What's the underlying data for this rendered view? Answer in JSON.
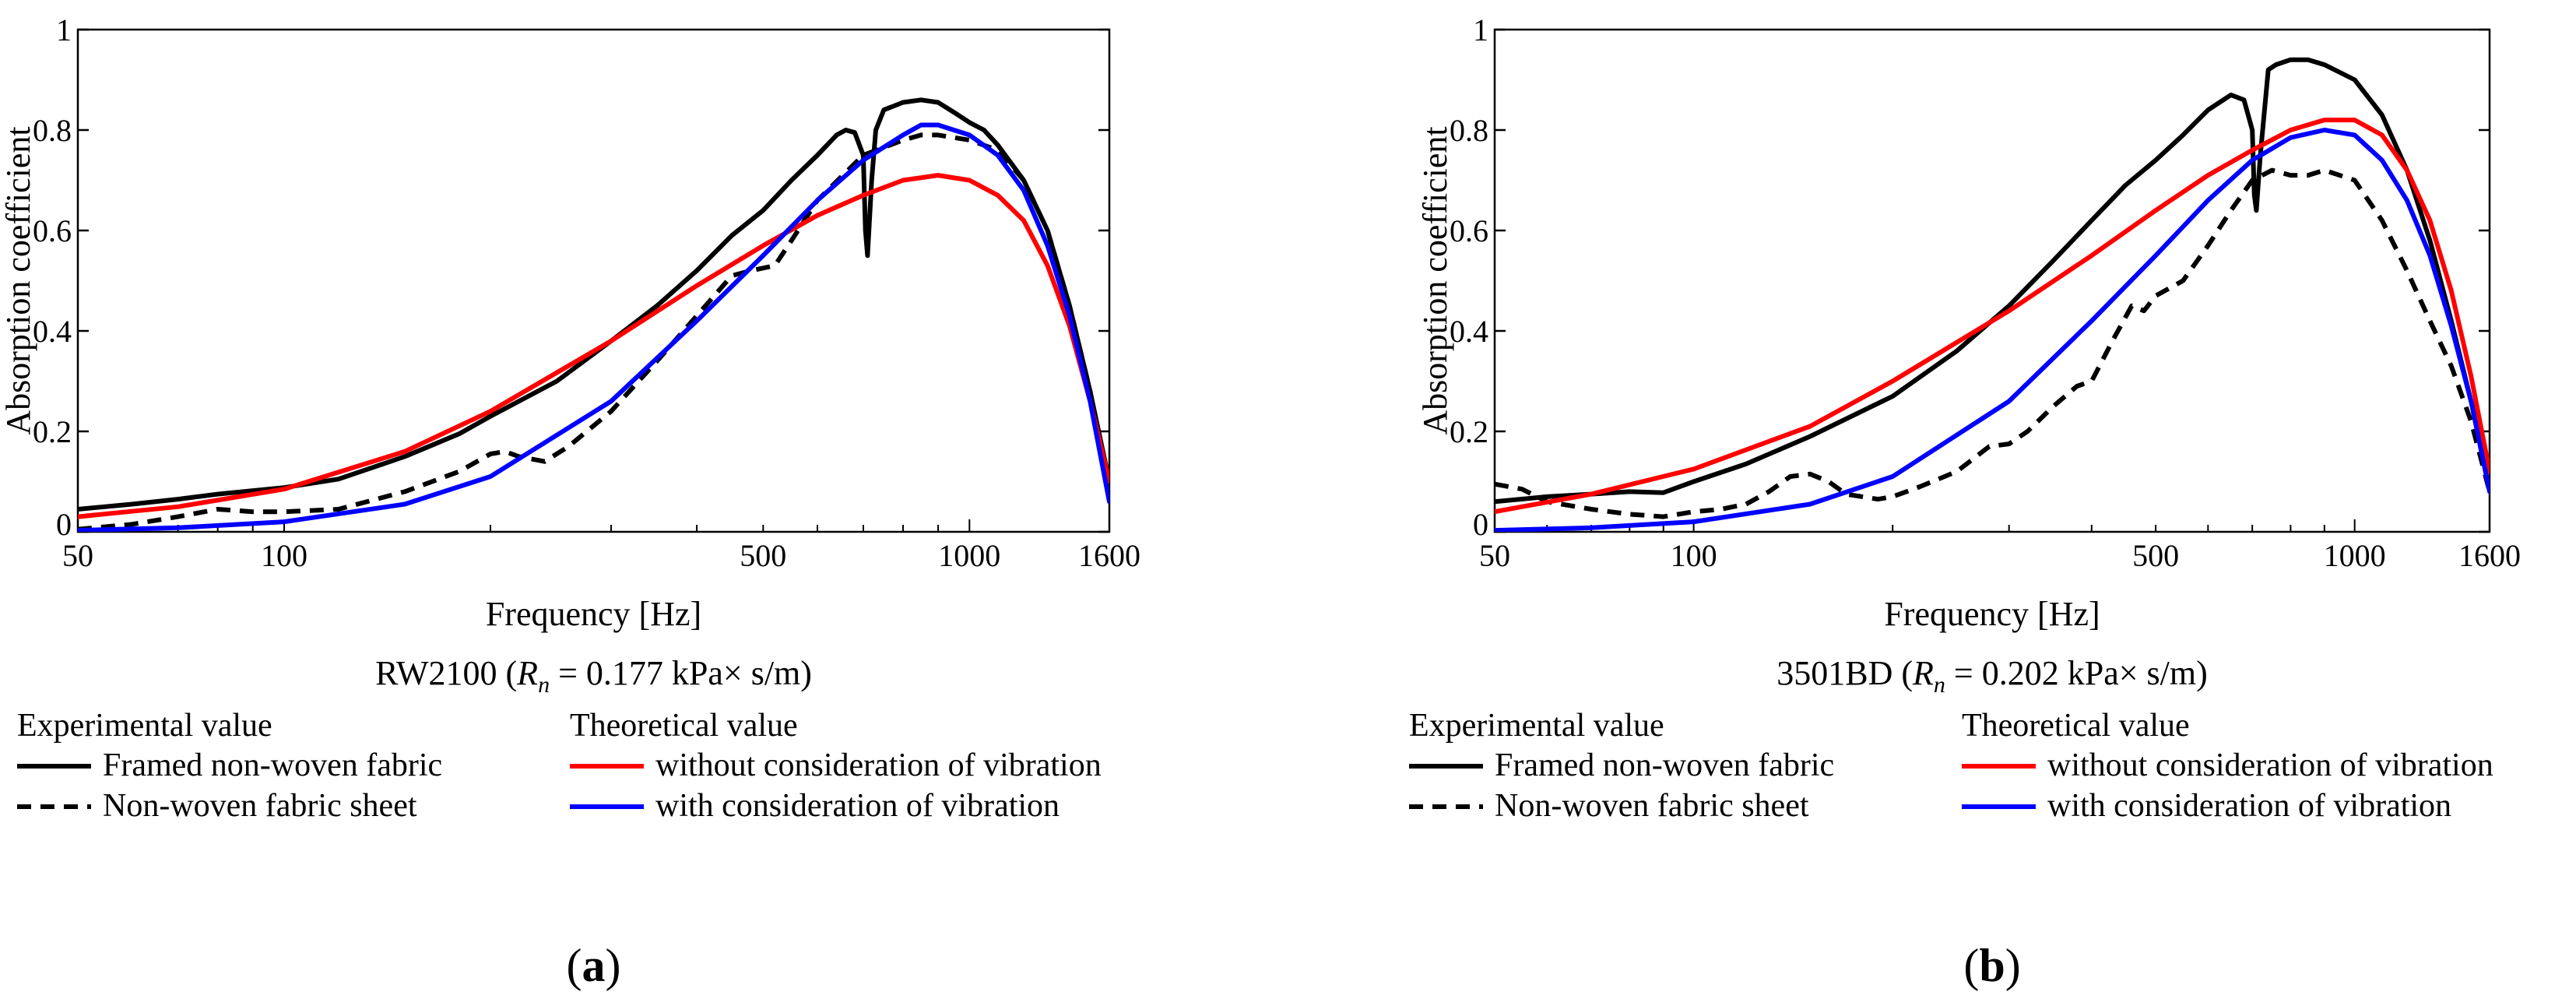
{
  "figure": {
    "panel_a_label": "a",
    "panel_b_label": "b"
  },
  "colors": {
    "experimental": "#000000",
    "without_vibration": "#ff0000",
    "with_vibration": "#0000ff",
    "axis": "#000000"
  },
  "chart_data": [
    {
      "type": "line",
      "panel": "a",
      "title": "",
      "caption": {
        "prefix": "RW2100 (",
        "symbol": "R",
        "subscript": "n",
        "suffix": " = 0.177 kPa× s/m)"
      },
      "xlabel": "Frequency [Hz]",
      "ylabel": "Absorption coefficient",
      "xscale": "log",
      "xlim": [
        50,
        1600
      ],
      "ylim": [
        0,
        1
      ],
      "x_ticks": [
        50,
        100,
        500,
        1000,
        1600
      ],
      "x_tick_labels": [
        "50",
        "100",
        "500",
        "1000",
        "1600"
      ],
      "y_ticks": [
        0,
        0.2,
        0.4,
        0.6,
        0.8,
        1
      ],
      "y_tick_labels": [
        "0",
        "0.2",
        "0.4",
        "0.6",
        "0.8",
        "1"
      ],
      "grid": false,
      "legend": {
        "experimental_heading": "Experimental value",
        "theoretical_heading": "Theoretical value",
        "placement": "below"
      },
      "series": [
        {
          "name": "Framed non-woven fabric",
          "group": "experimental",
          "style": "solid",
          "color": "#000000",
          "points": [
            [
              50,
              0.045
            ],
            [
              60,
              0.055
            ],
            [
              70,
              0.065
            ],
            [
              80,
              0.075
            ],
            [
              100,
              0.088
            ],
            [
              120,
              0.105
            ],
            [
              150,
              0.15
            ],
            [
              180,
              0.195
            ],
            [
              200,
              0.23
            ],
            [
              250,
              0.3
            ],
            [
              300,
              0.38
            ],
            [
              350,
              0.45
            ],
            [
              400,
              0.52
            ],
            [
              450,
              0.59
            ],
            [
              500,
              0.64
            ],
            [
              550,
              0.7
            ],
            [
              600,
              0.75
            ],
            [
              640,
              0.79
            ],
            [
              660,
              0.8
            ],
            [
              680,
              0.795
            ],
            [
              700,
              0.75
            ],
            [
              705,
              0.6
            ],
            [
              710,
              0.55
            ],
            [
              720,
              0.7
            ],
            [
              730,
              0.8
            ],
            [
              750,
              0.84
            ],
            [
              800,
              0.855
            ],
            [
              850,
              0.86
            ],
            [
              900,
              0.855
            ],
            [
              950,
              0.835
            ],
            [
              1000,
              0.815
            ],
            [
              1050,
              0.8
            ],
            [
              1100,
              0.77
            ],
            [
              1200,
              0.7
            ],
            [
              1300,
              0.6
            ],
            [
              1400,
              0.45
            ],
            [
              1500,
              0.28
            ],
            [
              1600,
              0.1
            ]
          ]
        },
        {
          "name": "Non-woven fabric sheet",
          "group": "experimental",
          "style": "dashed",
          "color": "#000000",
          "points": [
            [
              50,
              0.005
            ],
            [
              60,
              0.015
            ],
            [
              70,
              0.03
            ],
            [
              80,
              0.045
            ],
            [
              90,
              0.04
            ],
            [
              100,
              0.04
            ],
            [
              120,
              0.045
            ],
            [
              150,
              0.08
            ],
            [
              180,
              0.12
            ],
            [
              200,
              0.155
            ],
            [
              210,
              0.16
            ],
            [
              220,
              0.15
            ],
            [
              240,
              0.14
            ],
            [
              260,
              0.17
            ],
            [
              300,
              0.24
            ],
            [
              350,
              0.34
            ],
            [
              400,
              0.43
            ],
            [
              450,
              0.51
            ],
            [
              480,
              0.52
            ],
            [
              520,
              0.53
            ],
            [
              550,
              0.58
            ],
            [
              600,
              0.66
            ],
            [
              700,
              0.75
            ],
            [
              800,
              0.78
            ],
            [
              850,
              0.79
            ],
            [
              900,
              0.79
            ],
            [
              1000,
              0.78
            ],
            [
              1100,
              0.76
            ],
            [
              1200,
              0.7
            ],
            [
              1300,
              0.6
            ],
            [
              1400,
              0.45
            ],
            [
              1500,
              0.28
            ],
            [
              1600,
              0.08
            ]
          ]
        },
        {
          "name": "without consideration of vibration",
          "group": "theoretical",
          "style": "solid",
          "color": "#ff0000",
          "points": [
            [
              50,
              0.03
            ],
            [
              70,
              0.05
            ],
            [
              100,
              0.085
            ],
            [
              150,
              0.16
            ],
            [
              200,
              0.24
            ],
            [
              300,
              0.38
            ],
            [
              400,
              0.49
            ],
            [
              500,
              0.57
            ],
            [
              600,
              0.63
            ],
            [
              700,
              0.67
            ],
            [
              800,
              0.7
            ],
            [
              900,
              0.71
            ],
            [
              1000,
              0.7
            ],
            [
              1100,
              0.67
            ],
            [
              1200,
              0.62
            ],
            [
              1300,
              0.53
            ],
            [
              1400,
              0.41
            ],
            [
              1500,
              0.26
            ],
            [
              1600,
              0.1
            ]
          ]
        },
        {
          "name": "with consideration of vibration",
          "group": "theoretical",
          "style": "solid",
          "color": "#0000ff",
          "points": [
            [
              50,
              0.003
            ],
            [
              70,
              0.008
            ],
            [
              100,
              0.02
            ],
            [
              150,
              0.055
            ],
            [
              200,
              0.11
            ],
            [
              300,
              0.26
            ],
            [
              400,
              0.42
            ],
            [
              500,
              0.55
            ],
            [
              600,
              0.66
            ],
            [
              700,
              0.74
            ],
            [
              800,
              0.79
            ],
            [
              850,
              0.81
            ],
            [
              900,
              0.81
            ],
            [
              1000,
              0.79
            ],
            [
              1100,
              0.75
            ],
            [
              1200,
              0.68
            ],
            [
              1300,
              0.57
            ],
            [
              1400,
              0.43
            ],
            [
              1500,
              0.26
            ],
            [
              1600,
              0.06
            ]
          ]
        }
      ]
    },
    {
      "type": "line",
      "panel": "b",
      "title": "",
      "caption": {
        "prefix": "3501BD (",
        "symbol": "R",
        "subscript": "n",
        "suffix": " = 0.202 kPa× s/m)"
      },
      "xlabel": "Frequency [Hz]",
      "ylabel": "Absorption coefficient",
      "xscale": "log",
      "xlim": [
        50,
        1600
      ],
      "ylim": [
        0,
        1
      ],
      "x_ticks": [
        50,
        100,
        500,
        1000,
        1600
      ],
      "x_tick_labels": [
        "50",
        "100",
        "500",
        "1000",
        "1600"
      ],
      "y_ticks": [
        0,
        0.2,
        0.4,
        0.6,
        0.8,
        1
      ],
      "y_tick_labels": [
        "0",
        "0.2",
        "0.4",
        "0.6",
        "0.8",
        "1"
      ],
      "grid": false,
      "legend": {
        "experimental_heading": "Experimental value",
        "theoretical_heading": "Theoretical value",
        "placement": "below"
      },
      "series": [
        {
          "name": "Framed non-woven fabric",
          "group": "experimental",
          "style": "solid",
          "color": "#000000",
          "points": [
            [
              50,
              0.06
            ],
            [
              60,
              0.07
            ],
            [
              70,
              0.075
            ],
            [
              80,
              0.08
            ],
            [
              90,
              0.078
            ],
            [
              100,
              0.1
            ],
            [
              120,
              0.135
            ],
            [
              150,
              0.19
            ],
            [
              200,
              0.27
            ],
            [
              250,
              0.36
            ],
            [
              300,
              0.45
            ],
            [
              350,
              0.54
            ],
            [
              400,
              0.62
            ],
            [
              450,
              0.69
            ],
            [
              500,
              0.74
            ],
            [
              550,
              0.79
            ],
            [
              600,
              0.84
            ],
            [
              650,
              0.87
            ],
            [
              680,
              0.86
            ],
            [
              700,
              0.8
            ],
            [
              705,
              0.67
            ],
            [
              710,
              0.64
            ],
            [
              720,
              0.75
            ],
            [
              740,
              0.92
            ],
            [
              760,
              0.93
            ],
            [
              800,
              0.94
            ],
            [
              850,
              0.94
            ],
            [
              900,
              0.93
            ],
            [
              1000,
              0.9
            ],
            [
              1100,
              0.83
            ],
            [
              1200,
              0.72
            ],
            [
              1300,
              0.58
            ],
            [
              1400,
              0.42
            ],
            [
              1500,
              0.26
            ],
            [
              1600,
              0.12
            ]
          ]
        },
        {
          "name": "Non-woven fabric sheet",
          "group": "experimental",
          "style": "dashed",
          "color": "#000000",
          "points": [
            [
              50,
              0.095
            ],
            [
              55,
              0.085
            ],
            [
              60,
              0.06
            ],
            [
              70,
              0.045
            ],
            [
              80,
              0.035
            ],
            [
              90,
              0.03
            ],
            [
              100,
              0.04
            ],
            [
              110,
              0.045
            ],
            [
              120,
              0.055
            ],
            [
              130,
              0.08
            ],
            [
              140,
              0.11
            ],
            [
              150,
              0.115
            ],
            [
              160,
              0.1
            ],
            [
              170,
              0.075
            ],
            [
              190,
              0.065
            ],
            [
              200,
              0.07
            ],
            [
              220,
              0.09
            ],
            [
              250,
              0.12
            ],
            [
              280,
              0.17
            ],
            [
              300,
              0.175
            ],
            [
              320,
              0.2
            ],
            [
              350,
              0.25
            ],
            [
              380,
              0.29
            ],
            [
              400,
              0.3
            ],
            [
              430,
              0.38
            ],
            [
              460,
              0.45
            ],
            [
              480,
              0.44
            ],
            [
              500,
              0.47
            ],
            [
              550,
              0.5
            ],
            [
              600,
              0.57
            ],
            [
              650,
              0.64
            ],
            [
              700,
              0.7
            ],
            [
              750,
              0.72
            ],
            [
              800,
              0.71
            ],
            [
              850,
              0.71
            ],
            [
              900,
              0.72
            ],
            [
              1000,
              0.7
            ],
            [
              1100,
              0.62
            ],
            [
              1200,
              0.52
            ],
            [
              1300,
              0.42
            ],
            [
              1400,
              0.33
            ],
            [
              1500,
              0.22
            ],
            [
              1600,
              0.08
            ]
          ]
        },
        {
          "name": "without consideration of vibration",
          "group": "theoretical",
          "style": "solid",
          "color": "#ff0000",
          "points": [
            [
              50,
              0.04
            ],
            [
              70,
              0.075
            ],
            [
              100,
              0.125
            ],
            [
              150,
              0.21
            ],
            [
              200,
              0.3
            ],
            [
              300,
              0.44
            ],
            [
              400,
              0.55
            ],
            [
              500,
              0.64
            ],
            [
              600,
              0.71
            ],
            [
              700,
              0.76
            ],
            [
              800,
              0.8
            ],
            [
              900,
              0.82
            ],
            [
              1000,
              0.82
            ],
            [
              1100,
              0.79
            ],
            [
              1200,
              0.72
            ],
            [
              1300,
              0.62
            ],
            [
              1400,
              0.48
            ],
            [
              1500,
              0.31
            ],
            [
              1600,
              0.12
            ]
          ]
        },
        {
          "name": "with consideration of vibration",
          "group": "theoretical",
          "style": "solid",
          "color": "#0000ff",
          "points": [
            [
              50,
              0.003
            ],
            [
              70,
              0.008
            ],
            [
              100,
              0.02
            ],
            [
              150,
              0.055
            ],
            [
              200,
              0.11
            ],
            [
              300,
              0.26
            ],
            [
              400,
              0.42
            ],
            [
              500,
              0.55
            ],
            [
              600,
              0.66
            ],
            [
              700,
              0.74
            ],
            [
              800,
              0.785
            ],
            [
              900,
              0.8
            ],
            [
              1000,
              0.79
            ],
            [
              1100,
              0.74
            ],
            [
              1200,
              0.66
            ],
            [
              1300,
              0.55
            ],
            [
              1400,
              0.41
            ],
            [
              1500,
              0.26
            ],
            [
              1600,
              0.08
            ]
          ]
        }
      ]
    }
  ]
}
